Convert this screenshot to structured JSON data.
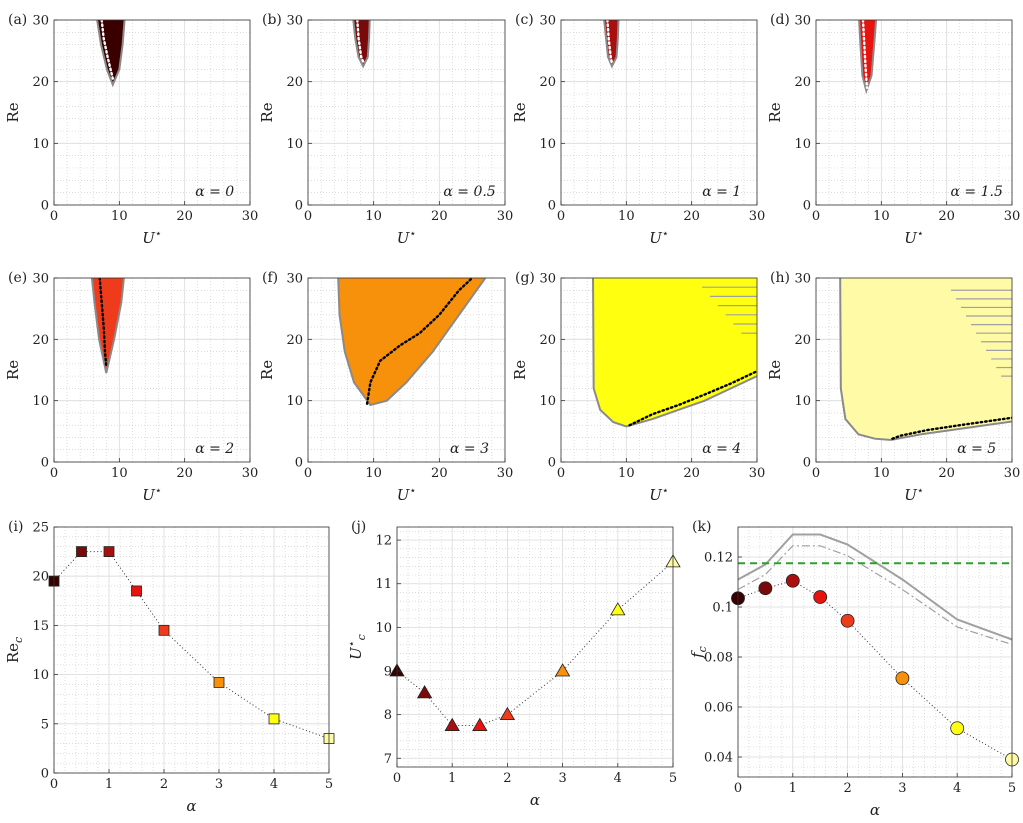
{
  "chart_data": [
    {
      "id": "a",
      "panel_label": "(a)",
      "type": "area",
      "title": "",
      "xlabel": "U⋆",
      "ylabel": "Re",
      "xlim": [
        0,
        30
      ],
      "ylim": [
        0,
        30
      ],
      "xticks": [
        "0",
        "10",
        "20",
        "30"
      ],
      "yticks": [
        "0",
        "10",
        "20",
        "30"
      ],
      "annotation": "α = 0",
      "alpha": 0,
      "fill_color": "#3a0000",
      "dotted_color": "#ffffff",
      "grid": true,
      "region_boundary": [
        [
          6.6,
          30
        ],
        [
          7.2,
          26
        ],
        [
          8.1,
          22
        ],
        [
          9,
          19.5
        ],
        [
          10,
          22
        ],
        [
          10.5,
          26
        ],
        [
          10.8,
          30
        ]
      ],
      "onset_curve": [
        [
          7.3,
          30
        ],
        [
          7.6,
          27
        ],
        [
          8.2,
          24
        ],
        [
          9,
          20.5
        ]
      ]
    },
    {
      "id": "b",
      "panel_label": "(b)",
      "type": "area",
      "title": "",
      "xlabel": "U⋆",
      "ylabel": "Re",
      "xlim": [
        0,
        30
      ],
      "ylim": [
        0,
        30
      ],
      "xticks": [
        "0",
        "10",
        "20",
        "30"
      ],
      "yticks": [
        "0",
        "10",
        "20",
        "30"
      ],
      "annotation": "α = 0.5",
      "alpha": 0.5,
      "fill_color": "#7a0a0a",
      "dotted_color": "#ffffff",
      "grid": true,
      "region_boundary": [
        [
          6.9,
          30
        ],
        [
          7.2,
          27
        ],
        [
          7.7,
          24
        ],
        [
          8.4,
          22.5
        ],
        [
          9.1,
          24
        ],
        [
          9.3,
          27
        ],
        [
          9.4,
          30
        ]
      ],
      "onset_curve": [
        [
          7.5,
          30
        ],
        [
          7.7,
          27
        ],
        [
          8.1,
          24
        ],
        [
          8.5,
          23
        ]
      ]
    },
    {
      "id": "c",
      "panel_label": "(c)",
      "type": "area",
      "title": "",
      "xlabel": "U⋆",
      "ylabel": "Re",
      "xlim": [
        0,
        30
      ],
      "ylim": [
        0,
        30
      ],
      "xticks": [
        "0",
        "10",
        "20",
        "30"
      ],
      "yticks": [
        "0",
        "10",
        "20",
        "30"
      ],
      "annotation": "α = 1",
      "alpha": 1,
      "fill_color": "#a90f0f",
      "dotted_color": "#ffffff",
      "grid": true,
      "region_boundary": [
        [
          6.6,
          30
        ],
        [
          6.9,
          27
        ],
        [
          7.2,
          24
        ],
        [
          7.8,
          22.5
        ],
        [
          8.5,
          24
        ],
        [
          8.7,
          27
        ],
        [
          8.8,
          30
        ]
      ],
      "onset_curve": [
        [
          7.1,
          30
        ],
        [
          7.3,
          27
        ],
        [
          7.6,
          24
        ],
        [
          7.8,
          23
        ]
      ]
    },
    {
      "id": "d",
      "panel_label": "(d)",
      "type": "area",
      "title": "",
      "xlabel": "U⋆",
      "ylabel": "Re",
      "xlim": [
        0,
        30
      ],
      "ylim": [
        0,
        30
      ],
      "xticks": [
        "0",
        "10",
        "20",
        "30"
      ],
      "yticks": [
        "0",
        "10",
        "20",
        "30"
      ],
      "annotation": "α = 1.5",
      "alpha": 1.5,
      "fill_color": "#e8120e",
      "dotted_color": "#ffffff",
      "grid": true,
      "region_boundary": [
        [
          6.6,
          30
        ],
        [
          6.8,
          26
        ],
        [
          7.1,
          21
        ],
        [
          7.7,
          18.5
        ],
        [
          8.5,
          21
        ],
        [
          8.9,
          26
        ],
        [
          9.2,
          30
        ]
      ],
      "onset_curve": [
        [
          7.2,
          30
        ],
        [
          7.4,
          26
        ],
        [
          7.6,
          22
        ],
        [
          7.8,
          19
        ]
      ]
    },
    {
      "id": "e",
      "panel_label": "(e)",
      "type": "area",
      "title": "",
      "xlabel": "U⋆",
      "ylabel": "Re",
      "xlim": [
        0,
        30
      ],
      "ylim": [
        0,
        30
      ],
      "xticks": [
        "0",
        "10",
        "20",
        "30"
      ],
      "yticks": [
        "0",
        "10",
        "20",
        "30"
      ],
      "annotation": "α = 2",
      "alpha": 2,
      "fill_color": "#ee3b1c",
      "dotted_color": "#000000",
      "grid": true,
      "region_boundary": [
        [
          5.8,
          30
        ],
        [
          6.2,
          26
        ],
        [
          6.9,
          20
        ],
        [
          8,
          14.5
        ],
        [
          9.2,
          20
        ],
        [
          10.3,
          26
        ],
        [
          10.7,
          30
        ]
      ],
      "onset_curve": [
        [
          7,
          30
        ],
        [
          7.3,
          26
        ],
        [
          7.6,
          22
        ],
        [
          7.8,
          18
        ],
        [
          8,
          15.5
        ]
      ]
    },
    {
      "id": "f",
      "panel_label": "(f)",
      "type": "area",
      "title": "",
      "xlabel": "U⋆",
      "ylabel": "Re",
      "xlim": [
        0,
        30
      ],
      "ylim": [
        0,
        30
      ],
      "xticks": [
        "0",
        "10",
        "20",
        "30"
      ],
      "yticks": [
        "0",
        "10",
        "20",
        "30"
      ],
      "annotation": "α = 3",
      "alpha": 3,
      "fill_color": "#f7900b",
      "dotted_color": "#000000",
      "grid": true,
      "region_boundary": [
        [
          4.6,
          30
        ],
        [
          4.8,
          24
        ],
        [
          5.6,
          18
        ],
        [
          7,
          13
        ],
        [
          9.5,
          9.3
        ],
        [
          12,
          10
        ],
        [
          15,
          13
        ],
        [
          19,
          18
        ],
        [
          23,
          24
        ],
        [
          27,
          30
        ]
      ],
      "onset_curve": [
        [
          9,
          9.5
        ],
        [
          9.5,
          13
        ],
        [
          11,
          16.5
        ],
        [
          14,
          19
        ],
        [
          17,
          21
        ],
        [
          20,
          24
        ],
        [
          23,
          28
        ],
        [
          25,
          30
        ]
      ]
    },
    {
      "id": "g",
      "panel_label": "(g)",
      "type": "area",
      "title": "",
      "xlabel": "U⋆",
      "ylabel": "Re",
      "xlim": [
        0,
        30
      ],
      "ylim": [
        0,
        30
      ],
      "xticks": [
        "0",
        "10",
        "20",
        "30"
      ],
      "yticks": [
        "0",
        "10",
        "20",
        "30"
      ],
      "annotation": "α = 4",
      "alpha": 4,
      "fill_color": "#ffff10",
      "dotted_color": "#000000",
      "grid": true,
      "region_boundary": [
        [
          4.9,
          30
        ],
        [
          5,
          12
        ],
        [
          6,
          8.5
        ],
        [
          8,
          6.5
        ],
        [
          10,
          5.8
        ],
        [
          14,
          7
        ],
        [
          18,
          8.5
        ],
        [
          22,
          10
        ],
        [
          26,
          12
        ],
        [
          30,
          14
        ]
      ],
      "onset_curve": [
        [
          10.5,
          6
        ],
        [
          14,
          7.8
        ],
        [
          18,
          9.3
        ],
        [
          22,
          11
        ],
        [
          26,
          12.8
        ],
        [
          30,
          14.8
        ]
      ],
      "hatch_rows_re": [
        21,
        22.5,
        24,
        25.5,
        27,
        28.5
      ]
    },
    {
      "id": "h",
      "panel_label": "(h)",
      "type": "area",
      "title": "",
      "xlabel": "U⋆",
      "ylabel": "Re",
      "xlim": [
        0,
        30
      ],
      "ylim": [
        0,
        30
      ],
      "xticks": [
        "0",
        "10",
        "20",
        "30"
      ],
      "yticks": [
        "0",
        "10",
        "20",
        "30"
      ],
      "annotation": "α = 5",
      "alpha": 5,
      "fill_color": "#fffaa6",
      "dotted_color": "#000000",
      "grid": true,
      "region_boundary": [
        [
          3.7,
          30
        ],
        [
          3.8,
          12
        ],
        [
          4.5,
          7
        ],
        [
          6.5,
          4.5
        ],
        [
          9,
          3.8
        ],
        [
          11.5,
          3.6
        ],
        [
          16,
          4.5
        ],
        [
          22,
          5.4
        ],
        [
          30,
          6.6
        ]
      ],
      "onset_curve": [
        [
          11.7,
          3.8
        ],
        [
          13,
          4.3
        ],
        [
          17,
          5.2
        ],
        [
          22,
          6
        ],
        [
          26,
          6.6
        ],
        [
          30,
          7.2
        ]
      ],
      "hatch_rows_re": [
        14,
        15.4,
        16.8,
        18.2,
        19.6,
        21,
        22.4,
        23.8,
        25.2,
        26.6,
        28
      ]
    },
    {
      "id": "i",
      "panel_label": "(i)",
      "type": "scatter",
      "title": "",
      "xlabel": "α",
      "ylabel": "Re_c",
      "xlim": [
        0,
        5
      ],
      "ylim": [
        0,
        25
      ],
      "xticks": [
        "0",
        "1",
        "2",
        "3",
        "4",
        "5"
      ],
      "yticks": [
        "0",
        "5",
        "10",
        "15",
        "20",
        "25"
      ],
      "marker": "square",
      "grid": true,
      "x": [
        0,
        0.5,
        1,
        1.5,
        2,
        3,
        4,
        5
      ],
      "y": [
        19.5,
        22.5,
        22.5,
        18.5,
        14.5,
        9.2,
        5.5,
        3.5
      ],
      "colors": [
        "#3a0000",
        "#7a0a0a",
        "#a90f0f",
        "#e8120e",
        "#ee3b1c",
        "#f7900b",
        "#ffff10",
        "#fffaa6"
      ]
    },
    {
      "id": "j",
      "panel_label": "(j)",
      "type": "scatter",
      "title": "",
      "xlabel": "α",
      "ylabel": "U⋆_c",
      "xlim": [
        0,
        5
      ],
      "ylim": [
        6.8,
        12.3
      ],
      "xticks": [
        "0",
        "1",
        "2",
        "3",
        "4",
        "5"
      ],
      "yticks": [
        "7",
        "8",
        "9",
        "10",
        "11",
        "12"
      ],
      "marker": "triangle",
      "grid": true,
      "x": [
        0,
        0.5,
        1,
        1.5,
        2,
        3,
        4,
        5
      ],
      "y": [
        9.0,
        8.5,
        7.75,
        7.75,
        8.0,
        9.0,
        10.4,
        11.5
      ],
      "colors": [
        "#3a0000",
        "#7a0a0a",
        "#a90f0f",
        "#e8120e",
        "#ee3b1c",
        "#f7900b",
        "#ffff10",
        "#fffaa6"
      ]
    },
    {
      "id": "k",
      "panel_label": "(k)",
      "type": "scatter",
      "title": "",
      "xlabel": "α",
      "ylabel": "f_c",
      "xlim": [
        0,
        5
      ],
      "ylim": [
        0.032,
        0.132
      ],
      "xticks": [
        "0",
        "1",
        "2",
        "3",
        "4",
        "5"
      ],
      "yticks": [
        "0.04",
        "0.06",
        "0.08",
        "0.1",
        "0.12"
      ],
      "marker": "circle",
      "grid": true,
      "x": [
        0,
        0.5,
        1,
        1.5,
        2,
        3,
        4,
        5
      ],
      "y": [
        0.1035,
        0.1075,
        0.1105,
        0.104,
        0.0945,
        0.0715,
        0.0515,
        0.039
      ],
      "colors": [
        "#3a0000",
        "#7a0a0a",
        "#a90f0f",
        "#e8120e",
        "#ee3b1c",
        "#f7900b",
        "#ffff10",
        "#fffaa6"
      ],
      "series": [
        {
          "style": "solid-gray",
          "x": [
            0,
            0.5,
            1,
            1.5,
            2,
            3,
            4,
            5
          ],
          "y": [
            0.111,
            0.117,
            0.129,
            0.129,
            0.125,
            0.111,
            0.095,
            0.087
          ]
        },
        {
          "style": "dashdot-gray",
          "x": [
            0,
            0.5,
            1,
            1.5,
            2,
            3,
            4,
            5
          ],
          "y": [
            0.107,
            0.113,
            0.1245,
            0.1245,
            0.1205,
            0.107,
            0.092,
            0.085
          ]
        },
        {
          "style": "dashed-green",
          "x": [
            0,
            5
          ],
          "y": [
            0.1175,
            0.1175
          ]
        }
      ]
    }
  ]
}
